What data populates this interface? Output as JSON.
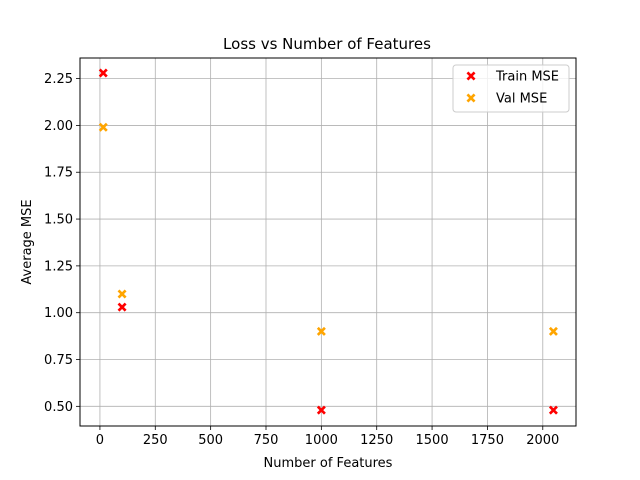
{
  "chart_data": {
    "type": "scatter",
    "title": "Loss vs Number of Features",
    "xlabel": "Number of Features",
    "ylabel": "Average MSE",
    "xlim": [
      -90,
      2150
    ],
    "ylim": [
      0.395,
      2.36
    ],
    "xticks": [
      0,
      250,
      500,
      750,
      1000,
      1250,
      1500,
      1750,
      2000
    ],
    "yticks": [
      0.5,
      0.75,
      1.0,
      1.25,
      1.5,
      1.75,
      2.0,
      2.25
    ],
    "ytick_labels": [
      "0.50",
      "0.75",
      "1.00",
      "1.25",
      "1.50",
      "1.75",
      "2.00",
      "2.25"
    ],
    "grid": true,
    "legend": "top-right",
    "series": [
      {
        "name": "Train MSE",
        "color": "#ff0000",
        "marker": "x-filled",
        "x": [
          15,
          100,
          1000,
          2048
        ],
        "y": [
          2.28,
          1.03,
          0.48,
          0.48
        ]
      },
      {
        "name": "Val MSE",
        "color": "#ffa500",
        "marker": "x-filled",
        "x": [
          15,
          100,
          1000,
          2048
        ],
        "y": [
          1.99,
          1.1,
          0.9,
          0.9
        ]
      }
    ]
  }
}
